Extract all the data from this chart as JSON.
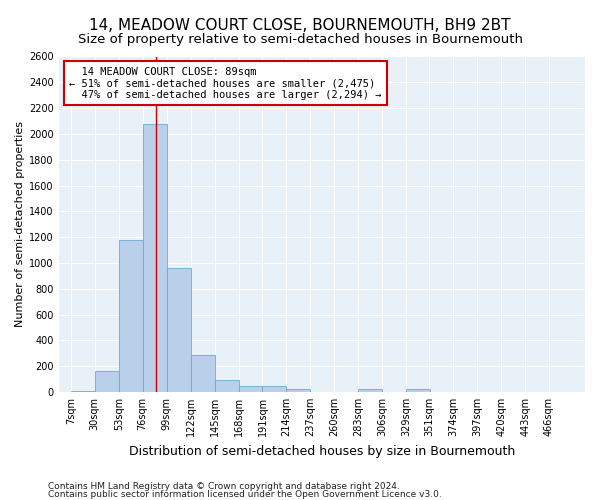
{
  "title": "14, MEADOW COURT CLOSE, BOURNEMOUTH, BH9 2BT",
  "subtitle": "Size of property relative to semi-detached houses in Bournemouth",
  "xlabel": "Distribution of semi-detached houses by size in Bournemouth",
  "ylabel": "Number of semi-detached properties",
  "footnote1": "Contains HM Land Registry data © Crown copyright and database right 2024.",
  "footnote2": "Contains public sector information licensed under the Open Government Licence v3.0.",
  "bar_edges": [
    7,
    30,
    53,
    76,
    99,
    122,
    145,
    168,
    191,
    214,
    237,
    260,
    283,
    306,
    329,
    351,
    374,
    397,
    420,
    443,
    466
  ],
  "bar_values": [
    5,
    160,
    1175,
    2075,
    960,
    285,
    95,
    45,
    45,
    25,
    0,
    0,
    25,
    0,
    25,
    0,
    0,
    0,
    0,
    0
  ],
  "bar_color": "#b8d0ea",
  "bar_edge_color": "#6aaad4",
  "property_size": 89,
  "property_label": "14 MEADOW COURT CLOSE: 89sqm",
  "pct_smaller": 51,
  "pct_smaller_n": 2475,
  "pct_larger": 47,
  "pct_larger_n": 2294,
  "vline_color": "#cc0000",
  "annotation_box_color": "#cc0000",
  "ylim": [
    0,
    2600
  ],
  "yticks": [
    0,
    200,
    400,
    600,
    800,
    1000,
    1200,
    1400,
    1600,
    1800,
    2000,
    2200,
    2400,
    2600
  ],
  "bg_color": "#e8f0f8",
  "grid_color": "#ffffff",
  "fig_bg_color": "#ffffff",
  "title_fontsize": 11,
  "subtitle_fontsize": 9.5,
  "xlabel_fontsize": 9,
  "ylabel_fontsize": 8,
  "tick_fontsize": 7,
  "footnote_fontsize": 6.5,
  "annot_fontsize": 7.5
}
